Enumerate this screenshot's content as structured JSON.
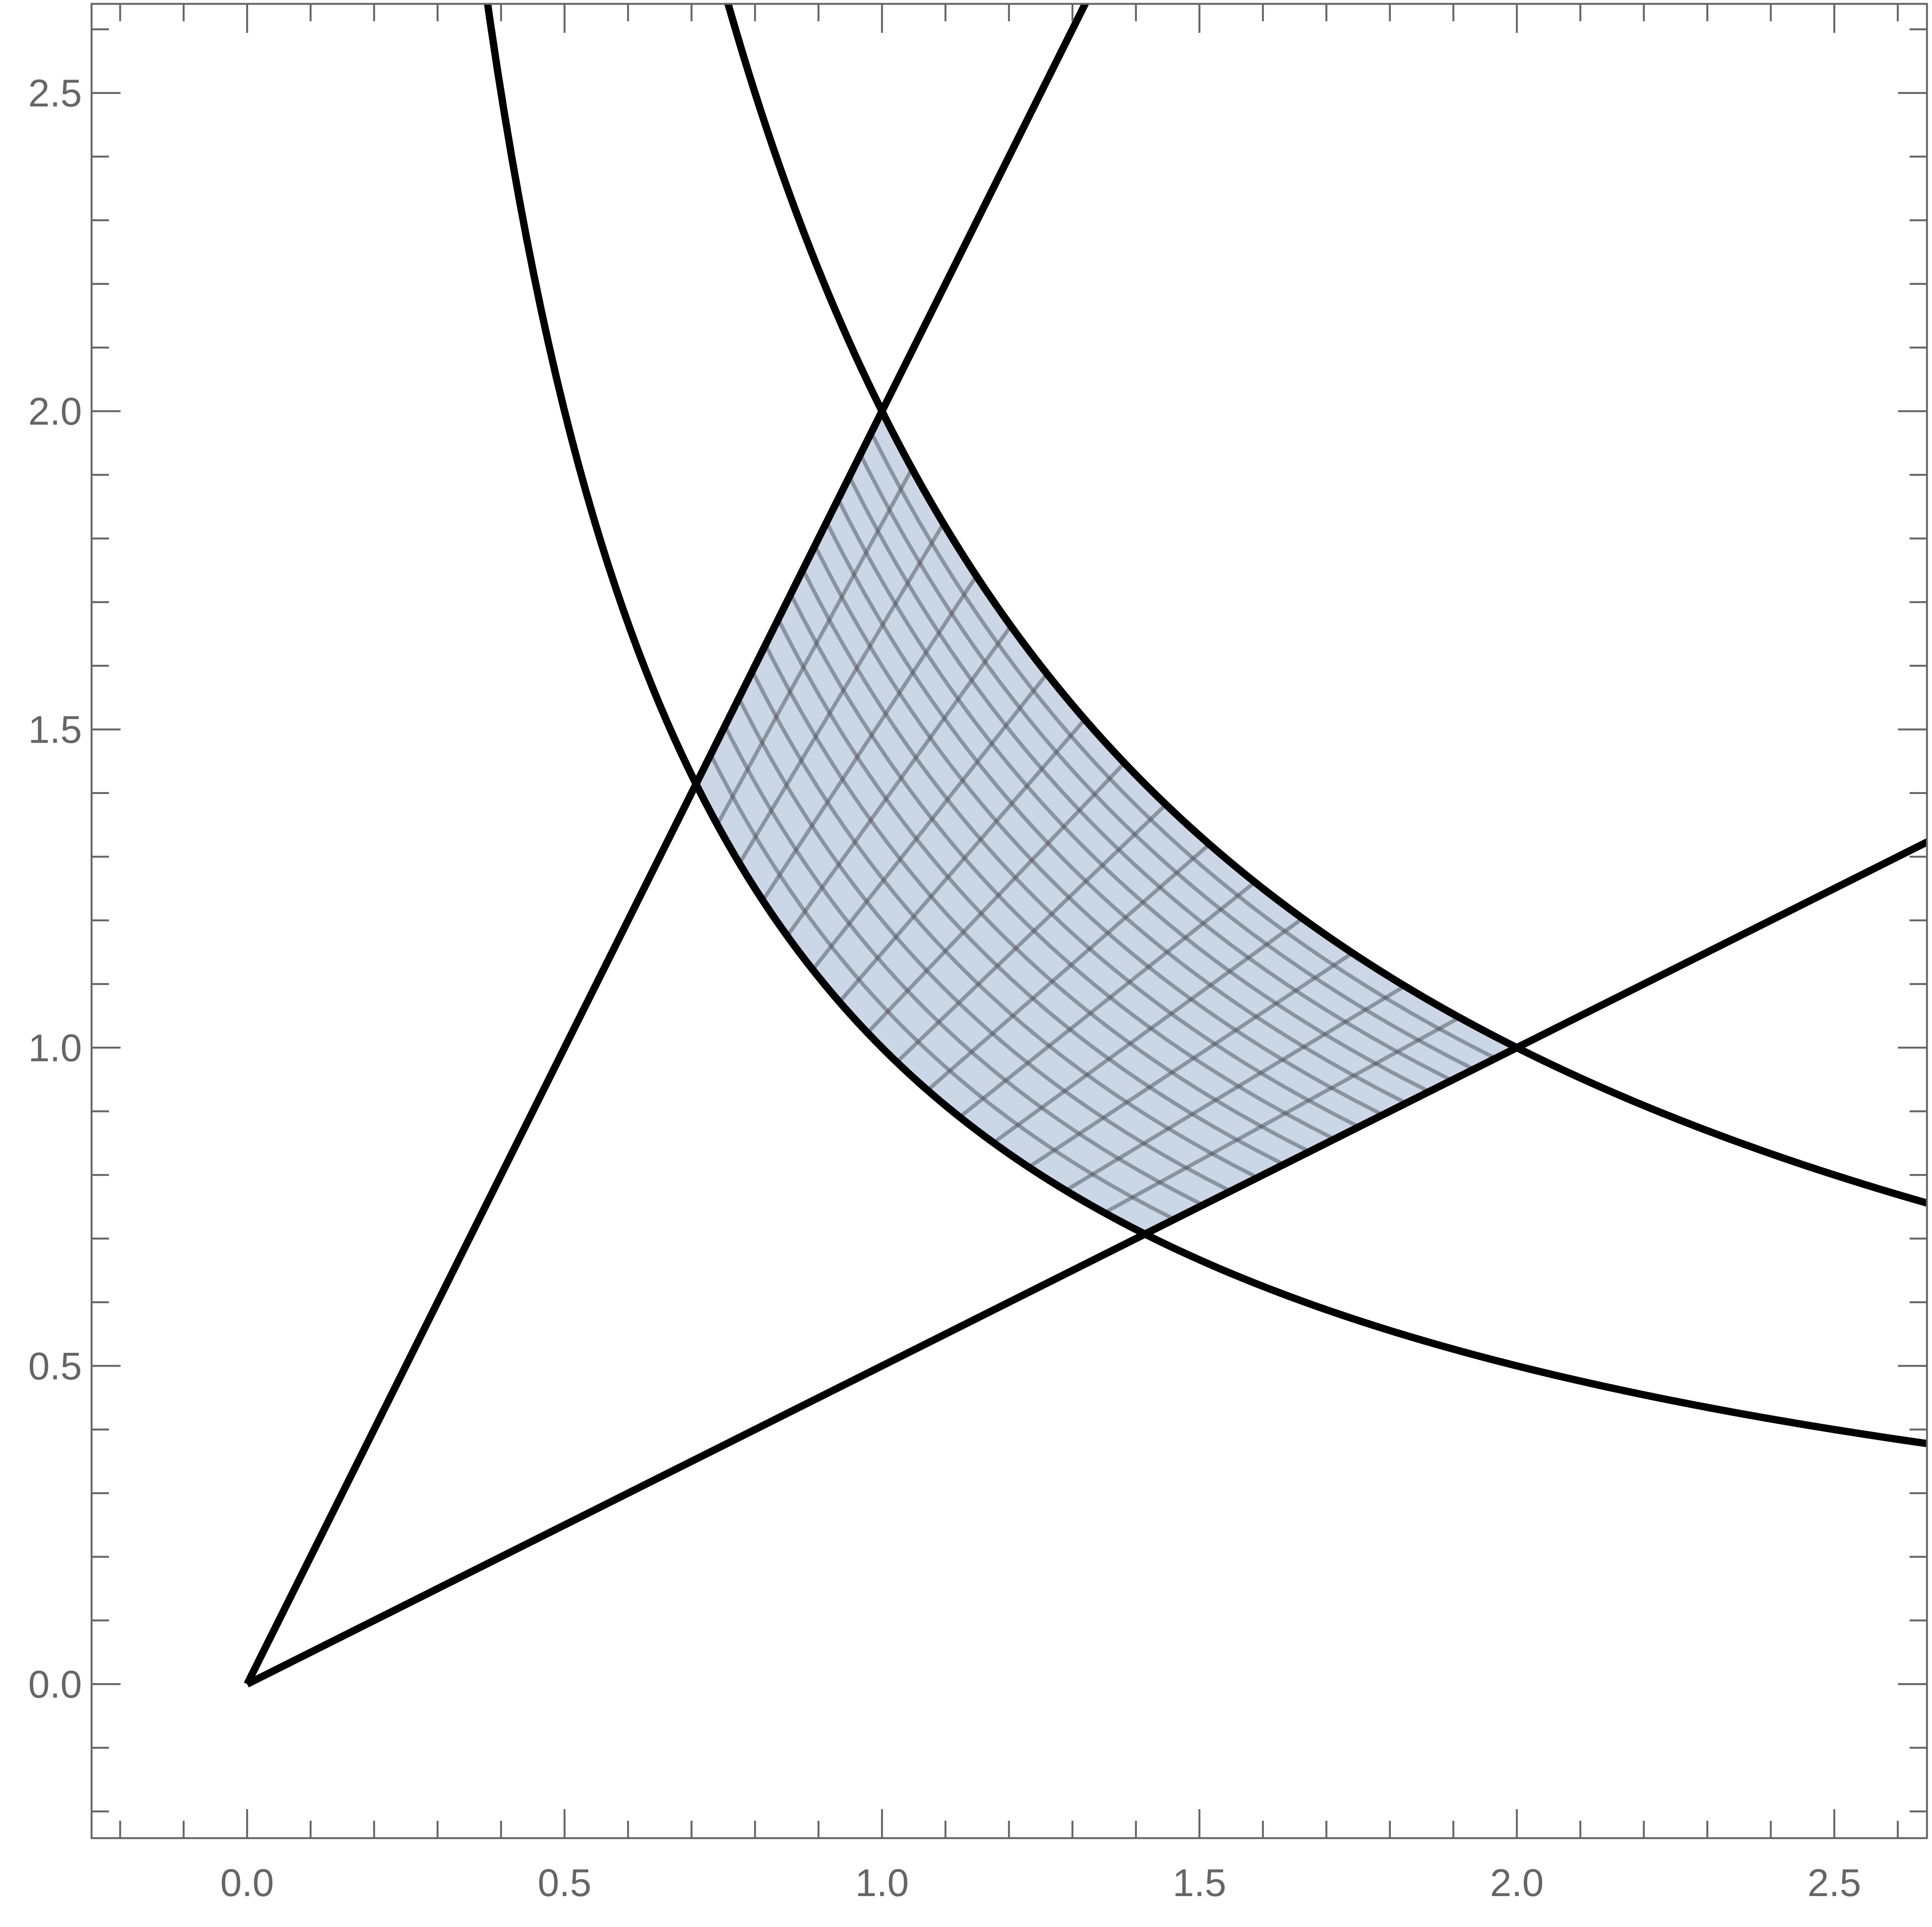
{
  "chart_data": {
    "type": "line",
    "title": "",
    "xlabel": "",
    "ylabel": "",
    "xlim": [
      -0.245,
      2.646
    ],
    "ylim": [
      -0.242,
      2.64
    ],
    "grid": false,
    "legend": "none",
    "x_ticks": [
      "0.0",
      "0.5",
      "1.0",
      "1.5",
      "2.0",
      "2.5"
    ],
    "y_ticks": [
      "0.0",
      "0.5",
      "1.0",
      "1.5",
      "2.0",
      "2.5"
    ],
    "minor_tick_step": 0.1,
    "curves": [
      {
        "equation": "y = 2x"
      },
      {
        "equation": "y = x/2"
      },
      {
        "equation": "xy = 1"
      },
      {
        "equation": "xy = 2"
      }
    ],
    "shaded_region": {
      "bounds": "1 <= xy <= 2, 1/2 <= y/x <= 2",
      "fill": "#cbd7e6",
      "mesh_divisions": 15,
      "mesh_color": "#4a4f5a"
    },
    "intersection_points": [
      [
        0.707,
        1.414
      ],
      [
        1.0,
        2.0
      ],
      [
        1.414,
        0.707
      ],
      [
        2.0,
        1.0
      ]
    ],
    "colors": {
      "curve": "#000000",
      "frame": "#666666"
    }
  }
}
